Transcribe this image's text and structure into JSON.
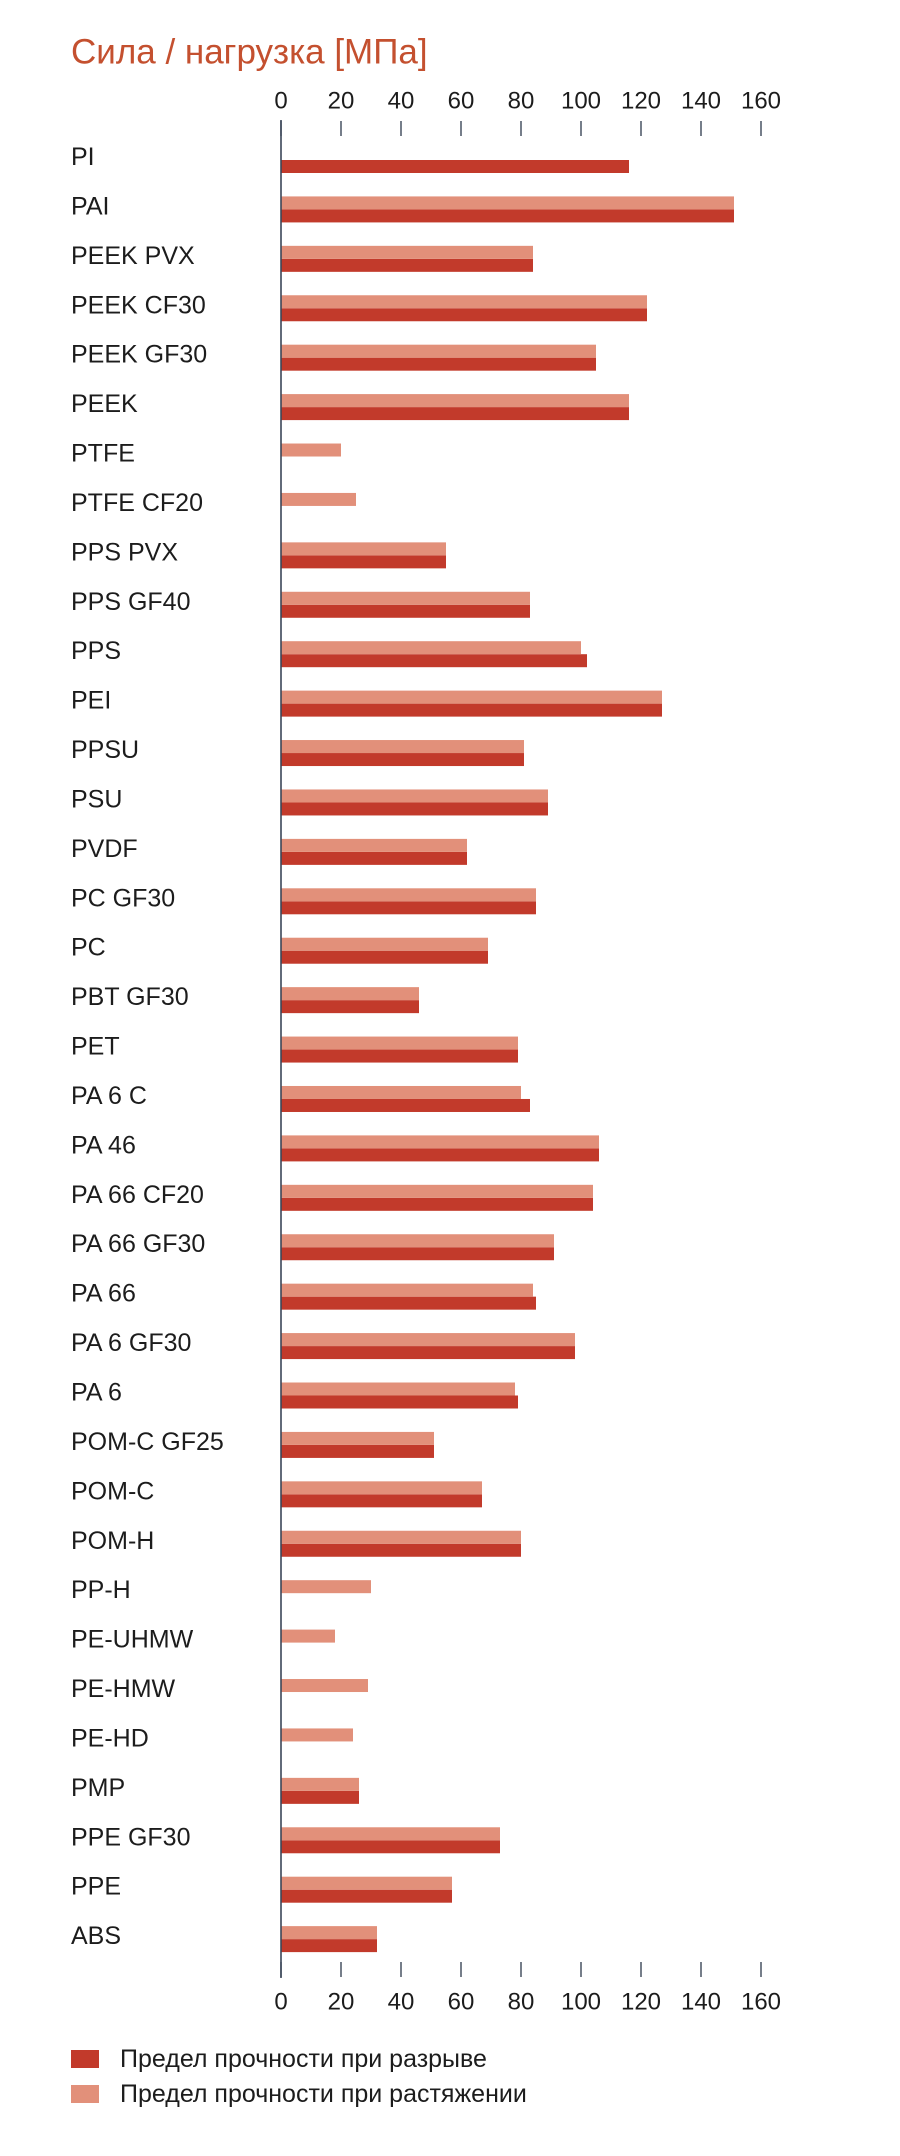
{
  "chart_data": {
    "type": "bar",
    "orientation": "horizontal",
    "title": "Сила / нагрузка [МПа]",
    "title_color": "#c4502f",
    "xlim": [
      0,
      160
    ],
    "xticks": [
      0,
      20,
      40,
      60,
      80,
      100,
      120,
      140,
      160
    ],
    "x_axis_position": "top-and-bottom",
    "grid": false,
    "legend_position": "bottom-left",
    "categories": [
      "PI",
      "PAI",
      "PEEK PVX",
      "PEEK CF30",
      "PEEK GF30",
      "PEEK",
      "PTFE",
      "PTFE CF20",
      "PPS PVX",
      "PPS GF40",
      "PPS",
      "PEI",
      "PPSU",
      "PSU",
      "PVDF",
      "PC GF30",
      "PC",
      "PBT GF30",
      "PET",
      "PA 6 C",
      "PA 46",
      "PA 66 CF20",
      "PA 66 GF30",
      "PA 66",
      "PA 6 GF30",
      "PA 6",
      "POM-C GF25",
      "POM-C",
      "POM-H",
      "PP-H",
      "PE-UHMW",
      "PE-HMW",
      "PE-HD",
      "PMP",
      "PPE GF30",
      "PPE",
      "ABS"
    ],
    "series": [
      {
        "name": "Предел прочности при разрыве",
        "color": "#c23a2b",
        "values": [
          116,
          151,
          84,
          122,
          105,
          116,
          null,
          null,
          55,
          83,
          102,
          127,
          81,
          89,
          62,
          85,
          69,
          46,
          79,
          83,
          106,
          104,
          91,
          85,
          98,
          79,
          51,
          67,
          80,
          null,
          null,
          null,
          null,
          26,
          73,
          57,
          32
        ]
      },
      {
        "name": "Предел прочности при растяжении",
        "color": "#e2907a",
        "values": [
          null,
          151,
          84,
          122,
          105,
          116,
          20,
          25,
          55,
          83,
          100,
          127,
          81,
          89,
          62,
          85,
          69,
          46,
          79,
          80,
          106,
          104,
          91,
          84,
          98,
          78,
          51,
          67,
          80,
          30,
          18,
          29,
          24,
          26,
          73,
          57,
          32
        ]
      }
    ]
  }
}
